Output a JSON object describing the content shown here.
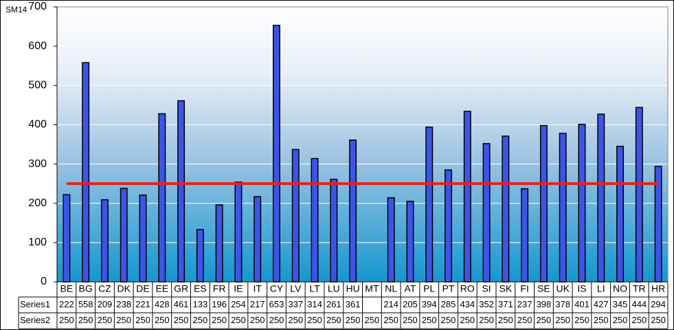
{
  "chart_data": {
    "type": "bar",
    "title": "SM14",
    "categories": [
      "BE",
      "BG",
      "CZ",
      "DK",
      "DE",
      "EE",
      "GR",
      "ES",
      "FR",
      "IE",
      "IT",
      "CY",
      "LV",
      "LT",
      "LU",
      "HU",
      "MT",
      "NL",
      "AT",
      "PL",
      "PT",
      "RO",
      "SI",
      "SK",
      "FI",
      "SE",
      "UK",
      "IS",
      "LI",
      "NO",
      "TR",
      "HR"
    ],
    "series": [
      {
        "name": "Series1",
        "type": "bar",
        "color": "#3d55e6",
        "values": [
          222,
          558,
          209,
          238,
          221,
          428,
          461,
          133,
          196,
          254,
          217,
          653,
          337,
          314,
          261,
          361,
          null,
          214,
          205,
          394,
          285,
          434,
          352,
          371,
          237,
          398,
          378,
          401,
          427,
          345,
          444,
          294
        ]
      },
      {
        "name": "Series2",
        "type": "line",
        "color": "#e8201c",
        "values": [
          250,
          250,
          250,
          250,
          250,
          250,
          250,
          250,
          250,
          250,
          250,
          250,
          250,
          250,
          250,
          250,
          250,
          250,
          250,
          250,
          250,
          250,
          250,
          250,
          250,
          250,
          250,
          250,
          250,
          250,
          250,
          250
        ]
      }
    ],
    "ylim": [
      0,
      700
    ],
    "yticks": [
      0,
      100,
      200,
      300,
      400,
      500,
      600,
      700
    ],
    "grid": true
  }
}
